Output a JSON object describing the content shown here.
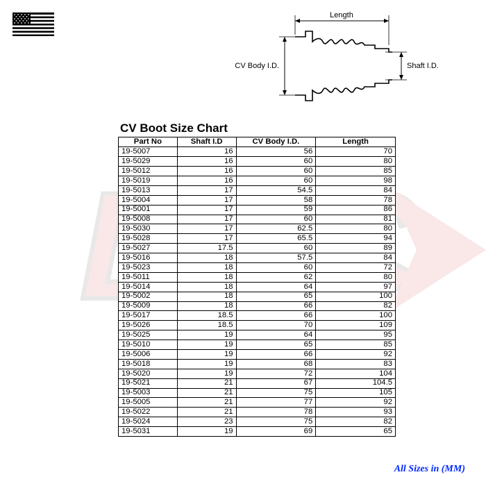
{
  "title": "CV Boot Size Chart",
  "footer": "All Sizes in (MM)",
  "diagram_labels": {
    "length": "Length",
    "cv_body": "CV Body I.D.",
    "shaft": "Shaft I.D."
  },
  "columns": [
    "Part No",
    "Shaft I.D",
    "CV Body I.D.",
    "Length"
  ],
  "rows": [
    [
      "19-5007",
      "16",
      "56",
      "70"
    ],
    [
      "19-5029",
      "16",
      "60",
      "80"
    ],
    [
      "19-5012",
      "16",
      "60",
      "85"
    ],
    [
      "19-5019",
      "16",
      "60",
      "98"
    ],
    [
      "19-5013",
      "17",
      "54.5",
      "84"
    ],
    [
      "19-5004",
      "17",
      "58",
      "78"
    ],
    [
      "19-5001",
      "17",
      "59",
      "86"
    ],
    [
      "19-5008",
      "17",
      "60",
      "81"
    ],
    [
      "19-5030",
      "17",
      "62.5",
      "80"
    ],
    [
      "19-5028",
      "17",
      "65.5",
      "94"
    ],
    [
      "19-5027",
      "17.5",
      "60",
      "89"
    ],
    [
      "19-5016",
      "18",
      "57.5",
      "84"
    ],
    [
      "19-5023",
      "18",
      "60",
      "72"
    ],
    [
      "19-5011",
      "18",
      "62",
      "80"
    ],
    [
      "19-5014",
      "18",
      "64",
      "97"
    ],
    [
      "19-5002",
      "18",
      "65",
      "100"
    ],
    [
      "19-5009",
      "18",
      "66",
      "82"
    ],
    [
      "19-5017",
      "18.5",
      "66",
      "100"
    ],
    [
      "19-5026",
      "18.5",
      "70",
      "109"
    ],
    [
      "19-5025",
      "19",
      "64",
      "95"
    ],
    [
      "19-5010",
      "19",
      "65",
      "85"
    ],
    [
      "19-5006",
      "19",
      "66",
      "92"
    ],
    [
      "19-5018",
      "19",
      "68",
      "83"
    ],
    [
      "19-5020",
      "19",
      "72",
      "104"
    ],
    [
      "19-5021",
      "21",
      "67",
      "104.5"
    ],
    [
      "19-5003",
      "21",
      "75",
      "105"
    ],
    [
      "19-5005",
      "21",
      "77",
      "92"
    ],
    [
      "19-5022",
      "21",
      "78",
      "93"
    ],
    [
      "19-5024",
      "23",
      "75",
      "82"
    ],
    [
      "19-5031",
      "19",
      "69",
      "65"
    ]
  ],
  "colors": {
    "text": "#000000",
    "border": "#000000",
    "background": "#ffffff",
    "footer": "#0028ff",
    "watermark_red": "#d91f2a",
    "watermark_dark": "#2b2b2b"
  }
}
